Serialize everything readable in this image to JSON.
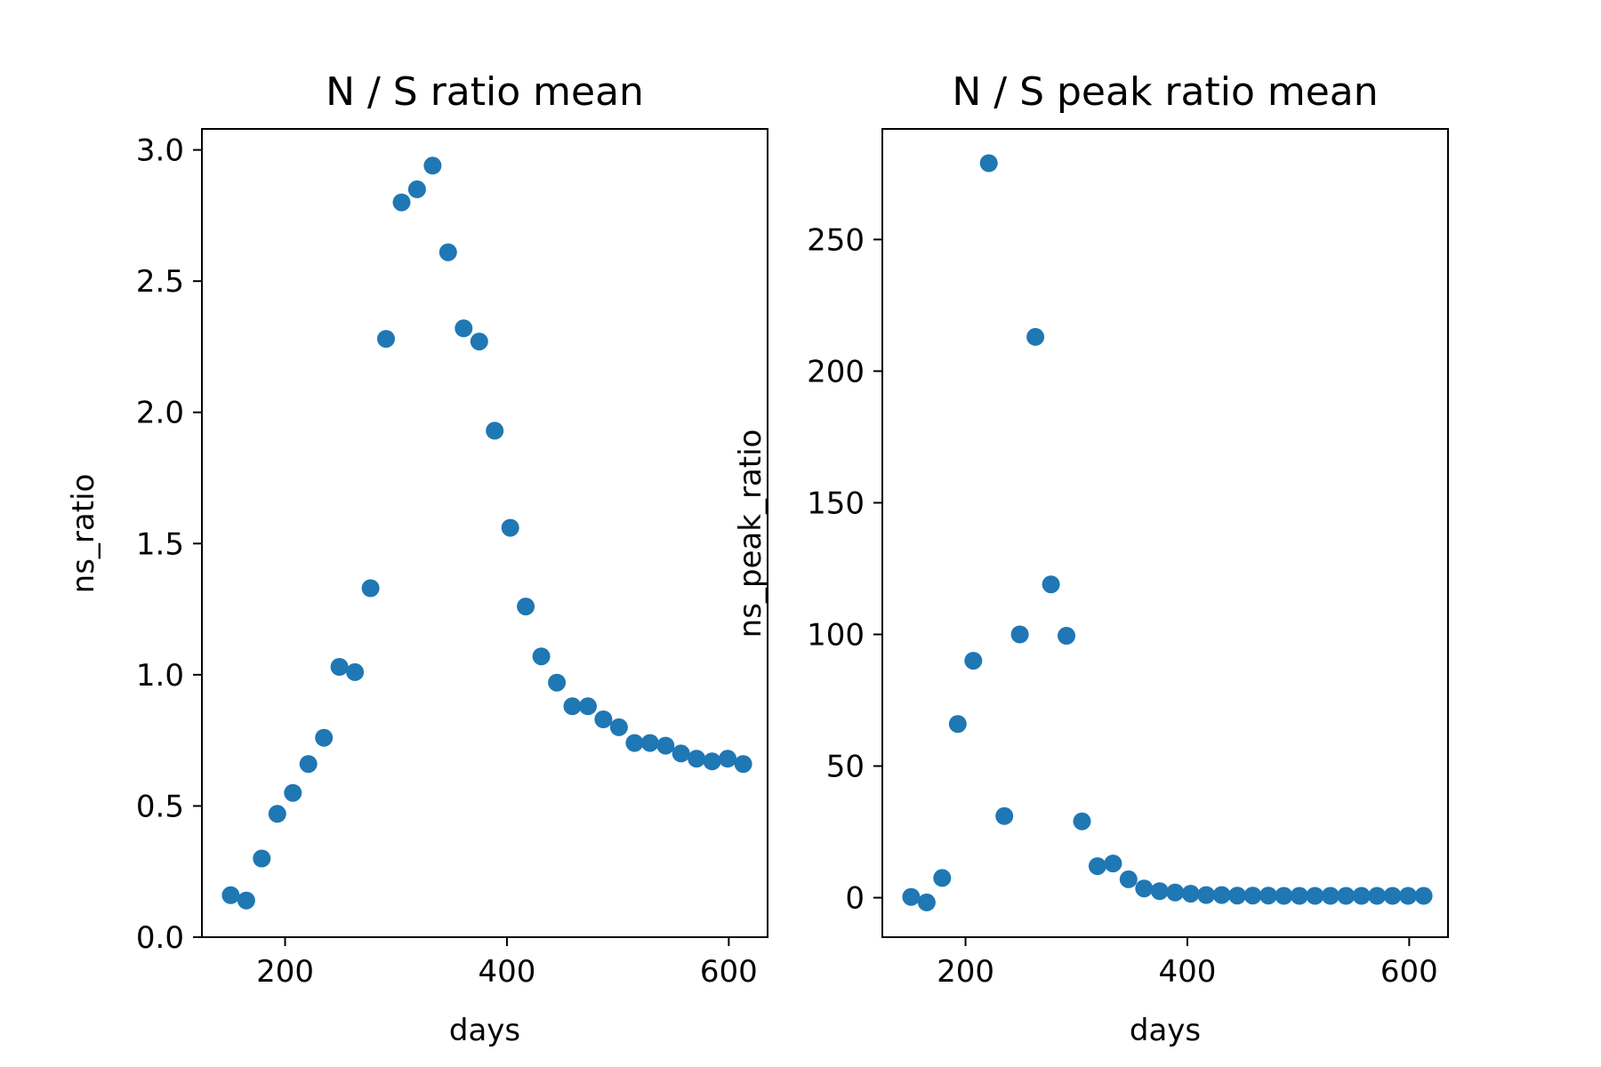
{
  "chart_data": [
    {
      "type": "scatter",
      "title": "N / S ratio mean",
      "xlabel": "days",
      "ylabel": "ns_ratio",
      "xlim": [
        125,
        635
      ],
      "ylim": [
        0.0,
        3.08
      ],
      "xticks": [
        200,
        400,
        600
      ],
      "xtick_labels": [
        "200",
        "400",
        "600"
      ],
      "yticks": [
        0.0,
        0.5,
        1.0,
        1.5,
        2.0,
        2.5,
        3.0
      ],
      "ytick_labels": [
        "0.0",
        "0.5",
        "1.0",
        "1.5",
        "2.0",
        "2.5",
        "3.0"
      ],
      "grid": false,
      "color": "#1f77b4",
      "x": [
        151,
        165,
        179,
        193,
        207,
        221,
        235,
        249,
        263,
        277,
        291,
        305,
        319,
        333,
        347,
        361,
        375,
        389,
        403,
        417,
        431,
        445,
        459,
        473,
        487,
        501,
        515,
        529,
        543,
        557,
        571,
        585,
        599,
        613
      ],
      "y": [
        0.16,
        0.14,
        0.3,
        0.47,
        0.55,
        0.66,
        0.76,
        1.03,
        1.01,
        1.33,
        2.28,
        2.8,
        2.85,
        2.94,
        2.61,
        2.32,
        2.27,
        1.93,
        1.56,
        1.26,
        1.07,
        0.97,
        0.88,
        0.88,
        0.83,
        0.8,
        0.74,
        0.74,
        0.73,
        0.7,
        0.68,
        0.67,
        0.68,
        0.66
      ]
    },
    {
      "type": "scatter",
      "title": "N / S peak ratio mean",
      "xlabel": "days",
      "ylabel": "ns_peak_ratio",
      "xlim": [
        125,
        635
      ],
      "ylim": [
        -15,
        292
      ],
      "xticks": [
        200,
        400,
        600
      ],
      "xtick_labels": [
        "200",
        "400",
        "600"
      ],
      "yticks": [
        0,
        50,
        100,
        150,
        200,
        250
      ],
      "ytick_labels": [
        "0",
        "50",
        "100",
        "150",
        "200",
        "250"
      ],
      "grid": false,
      "color": "#1f77b4",
      "x": [
        151,
        165,
        179,
        193,
        207,
        221,
        235,
        249,
        263,
        277,
        291,
        305,
        319,
        333,
        347,
        361,
        375,
        389,
        403,
        417,
        431,
        445,
        459,
        473,
        487,
        501,
        515,
        529,
        543,
        557,
        571,
        585,
        599,
        613
      ],
      "y": [
        0.3,
        -1.8,
        7.5,
        66,
        90,
        279,
        31,
        100,
        213,
        119,
        99.5,
        29,
        12,
        13,
        7,
        3.5,
        2.5,
        2,
        1.5,
        1,
        1,
        0.8,
        0.8,
        0.8,
        0.7,
        0.7,
        0.7,
        0.7,
        0.7,
        0.7,
        0.7,
        0.7,
        0.7,
        0.7
      ]
    }
  ]
}
